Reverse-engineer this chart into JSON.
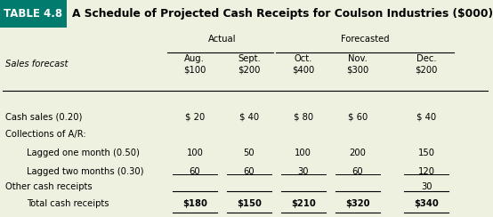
{
  "title_label": "TABLE 4.8",
  "title_text": "A Schedule of Projected Cash Receipts for Coulson Industries ($000)",
  "title_bg": "#007b6e",
  "title_text_color": "#ffffff",
  "table_bg": "#eef0e0",
  "col_headers": [
    "Aug.\n$100",
    "Sept.\n$200",
    "Oct.\n$400",
    "Nov.\n$300",
    "Dec.\n$200"
  ],
  "cash_vals": [
    "$ 20",
    "$ 40",
    "$ 80",
    "$ 60",
    "$ 40"
  ],
  "lag1_vals": [
    "100",
    "50",
    "100",
    "200",
    "150"
  ],
  "lag2_vals": [
    "60",
    "60",
    "30",
    "60",
    "120"
  ],
  "other_vals": [
    "",
    "",
    "",
    "",
    "30"
  ],
  "total_vals": [
    "$180",
    "$150",
    "$210",
    "$320",
    "$340"
  ],
  "font_size": 7.2,
  "header_font_size": 8.5,
  "title_font_size": 8.8
}
